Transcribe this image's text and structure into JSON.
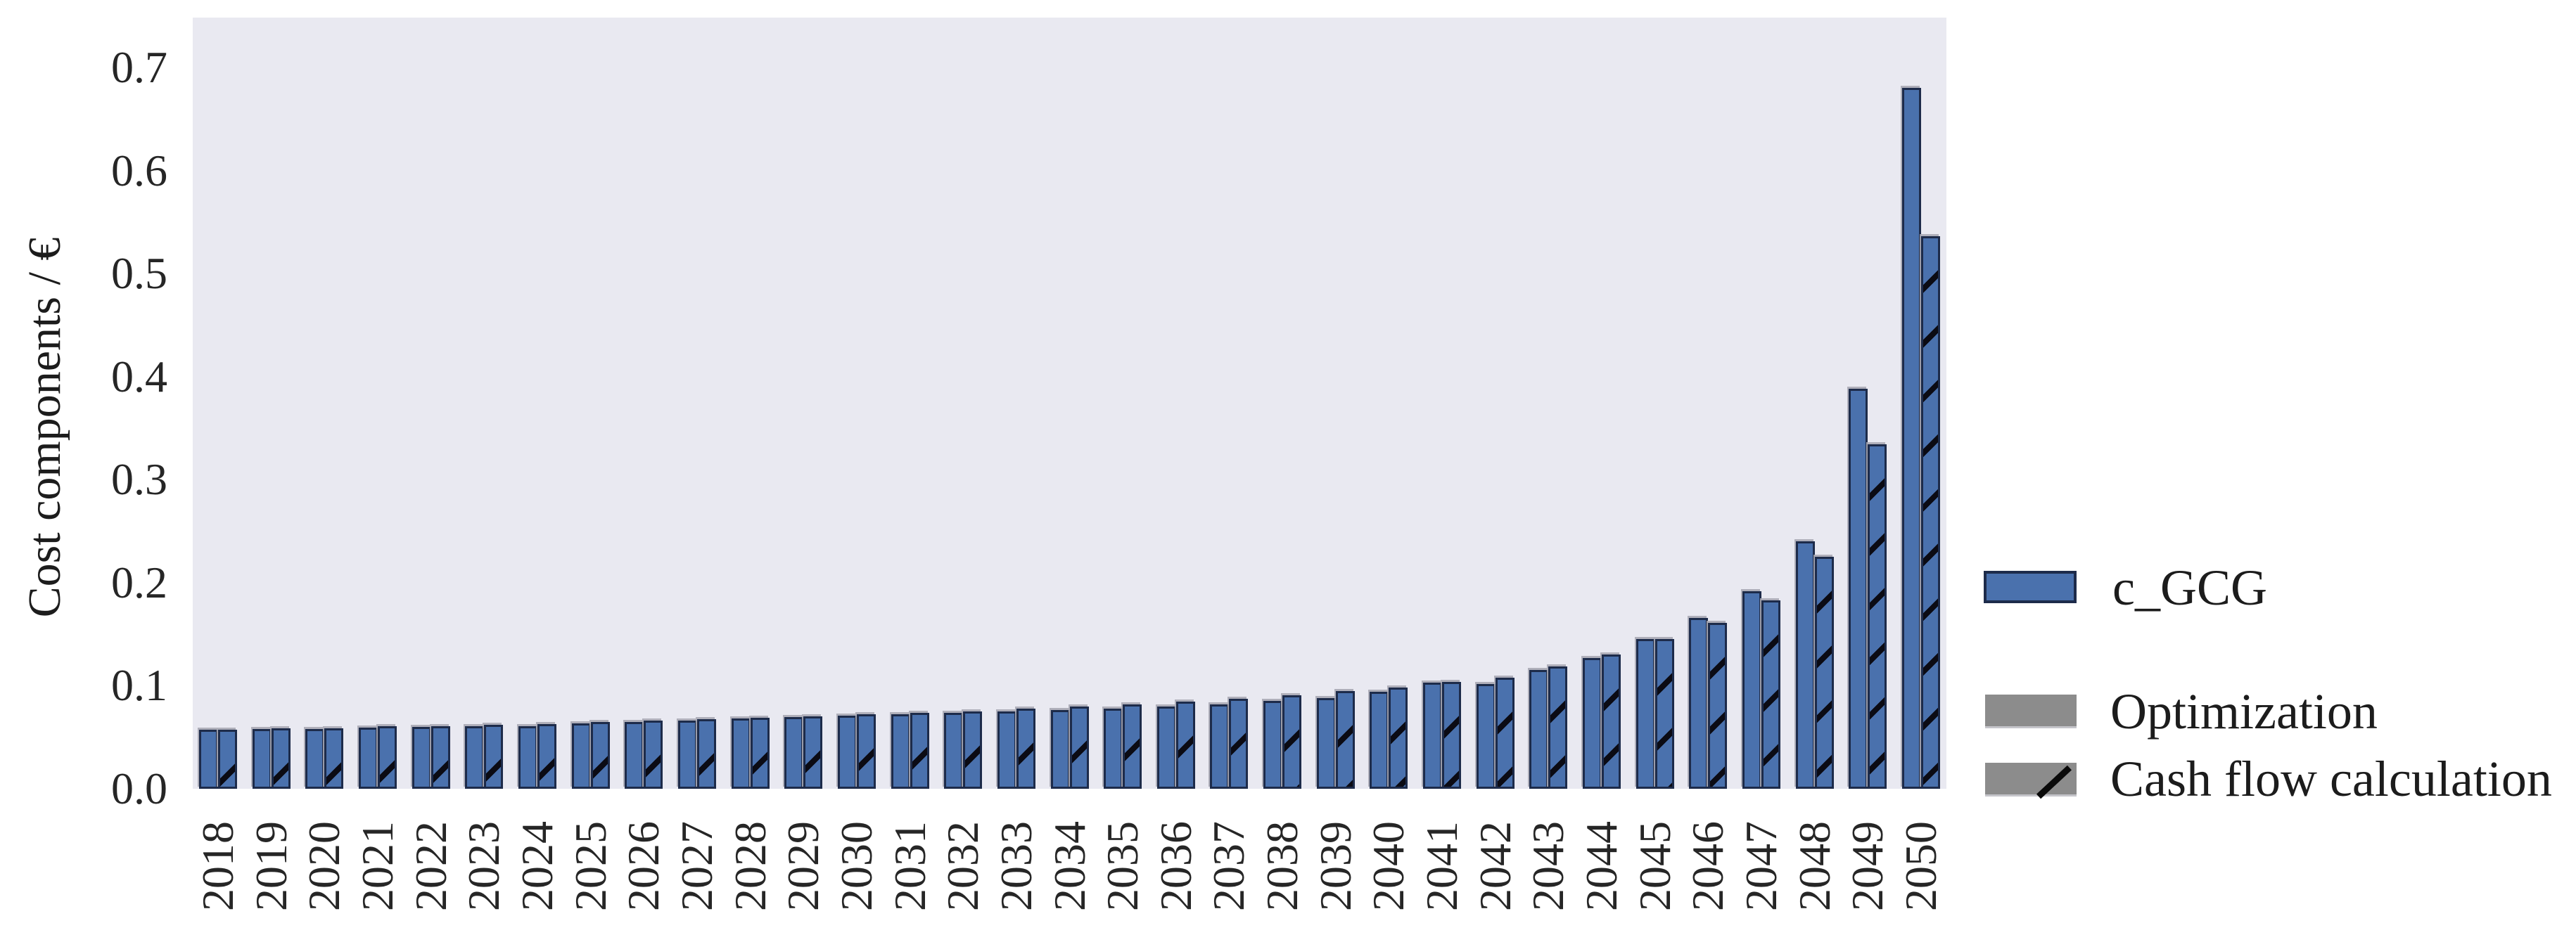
{
  "figure": {
    "background_color": "#ffffff",
    "plot_background_color": "#e9e9f1",
    "bar_fill_color": "#4a71ad",
    "bar_edge_color": "#1d2b4a",
    "hatch_color": "#0b0b14",
    "legend_gray_color": "#8c8c8c"
  },
  "chart_data": {
    "type": "bar",
    "title": "",
    "xlabel": "",
    "ylabel": "Cost components / €",
    "ylim": [
      0,
      0.7485
    ],
    "grid": false,
    "legend_position": "right",
    "yticks": [
      "0.0",
      "0.1",
      "0.2",
      "0.3",
      "0.4",
      "0.5",
      "0.6",
      "0.7"
    ],
    "ytick_values": [
      0.0,
      0.1,
      0.2,
      0.3,
      0.4,
      0.5,
      0.6,
      0.7
    ],
    "categories": [
      "2018",
      "2019",
      "2020",
      "2021",
      "2022",
      "2023",
      "2024",
      "2025",
      "2026",
      "2027",
      "2028",
      "2029",
      "2030",
      "2031",
      "2032",
      "2033",
      "2034",
      "2035",
      "2036",
      "2037",
      "2038",
      "2039",
      "2040",
      "2041",
      "2042",
      "2043",
      "2044",
      "2045",
      "2046",
      "2047",
      "2048",
      "2049",
      "2050"
    ],
    "series": [
      {
        "name": "Optimization",
        "hatch": "none",
        "values": [
          0.057,
          0.058,
          0.058,
          0.0595,
          0.06,
          0.0605,
          0.061,
          0.0635,
          0.065,
          0.0665,
          0.068,
          0.0695,
          0.071,
          0.072,
          0.0735,
          0.075,
          0.0765,
          0.078,
          0.08,
          0.082,
          0.085,
          0.088,
          0.094,
          0.103,
          0.102,
          0.115,
          0.127,
          0.145,
          0.166,
          0.192,
          0.24,
          0.388,
          0.68
        ]
      },
      {
        "name": "Cash flow calculation",
        "hatch": "/",
        "values": [
          0.057,
          0.0585,
          0.059,
          0.0605,
          0.061,
          0.062,
          0.063,
          0.0645,
          0.066,
          0.0675,
          0.069,
          0.0705,
          0.072,
          0.0735,
          0.075,
          0.0775,
          0.08,
          0.082,
          0.0845,
          0.087,
          0.0905,
          0.095,
          0.098,
          0.104,
          0.108,
          0.119,
          0.13,
          0.145,
          0.161,
          0.183,
          0.225,
          0.334,
          0.536
        ]
      }
    ],
    "legend": {
      "color_entry_label": "c_GCG",
      "style_entries": [
        "Optimization",
        "Cash flow calculation"
      ]
    }
  }
}
